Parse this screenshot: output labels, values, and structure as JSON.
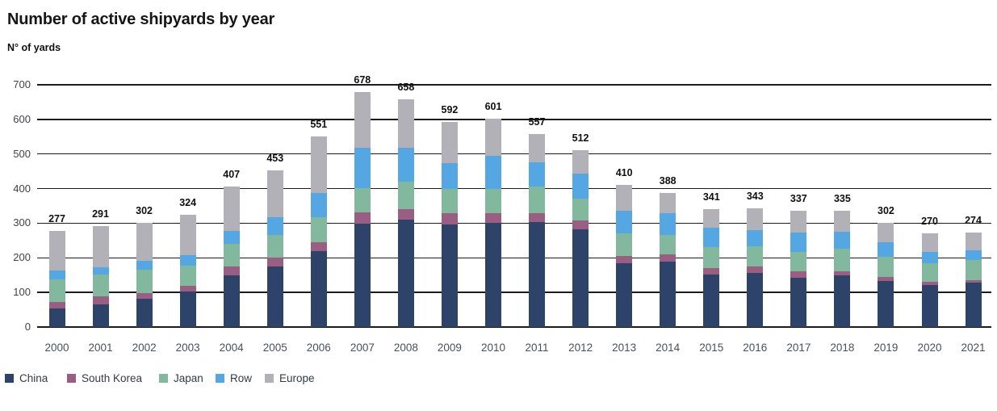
{
  "title": "Number of active shipyards by year",
  "y_axis_title": "N° of yards",
  "chart_data": {
    "type": "bar",
    "stacked": true,
    "title": "Number of active shipyards by year",
    "ylabel": "N° of yards",
    "xlabel": "",
    "ylim": [
      0,
      700
    ],
    "y_ticks": [
      0,
      100,
      200,
      300,
      400,
      500,
      600,
      700
    ],
    "grid": "horizontal",
    "legend_position": "bottom-left",
    "categories": [
      "2000",
      "2001",
      "2002",
      "2003",
      "2004",
      "2005",
      "2006",
      "2007",
      "2008",
      "2009",
      "2010",
      "2011",
      "2012",
      "2013",
      "2014",
      "2015",
      "2016",
      "2017",
      "2018",
      "2019",
      "2020",
      "2021"
    ],
    "series": [
      {
        "name": "China",
        "color": "#2e4369",
        "values": [
          53,
          66,
          81,
          103,
          150,
          175,
          220,
          298,
          310,
          296,
          300,
          303,
          282,
          184,
          189,
          152,
          156,
          143,
          150,
          134,
          122,
          128
        ]
      },
      {
        "name": "South Korea",
        "color": "#9a5e82",
        "values": [
          20,
          23,
          17,
          16,
          25,
          25,
          26,
          34,
          31,
          32,
          29,
          27,
          25,
          21,
          20,
          19,
          19,
          19,
          12,
          10,
          9,
          8
        ]
      },
      {
        "name": "Japan",
        "color": "#81b89e",
        "values": [
          65,
          63,
          68,
          58,
          65,
          66,
          72,
          70,
          78,
          70,
          71,
          75,
          64,
          65,
          57,
          60,
          58,
          55,
          64,
          60,
          54,
          57
        ]
      },
      {
        "name": "Row",
        "color": "#54a7e2",
        "values": [
          25,
          21,
          25,
          31,
          37,
          51,
          70,
          117,
          98,
          76,
          94,
          72,
          72,
          66,
          62,
          56,
          47,
          56,
          49,
          41,
          31,
          29
        ]
      },
      {
        "name": "Europe",
        "color": "#b1b1b7",
        "values": [
          114,
          118,
          111,
          116,
          130,
          136,
          163,
          159,
          141,
          118,
          107,
          80,
          69,
          74,
          60,
          54,
          63,
          64,
          60,
          57,
          54,
          52
        ]
      }
    ],
    "totals": [
      277,
      291,
      302,
      324,
      407,
      453,
      551,
      678,
      658,
      592,
      601,
      557,
      512,
      410,
      388,
      341,
      343,
      337,
      335,
      302,
      270,
      274
    ]
  }
}
